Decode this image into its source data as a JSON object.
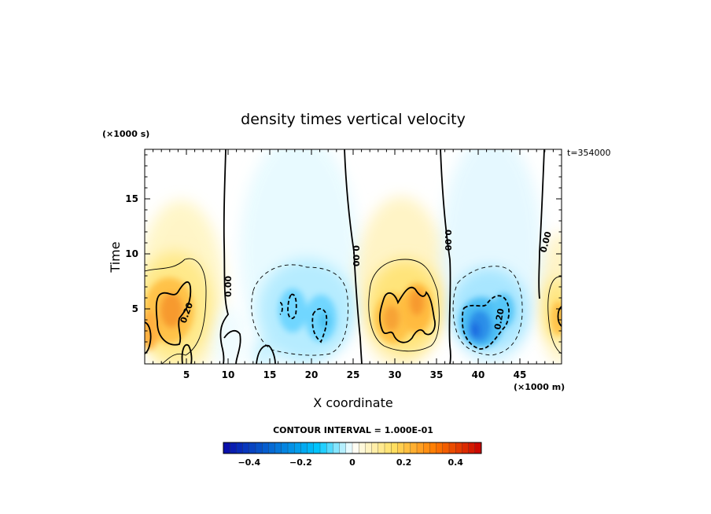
{
  "chart_data": {
    "type": "heatmap",
    "title": "density times vertical velocity",
    "xlabel": "X coordinate",
    "ylabel": "Time",
    "x_unit_label": "(×1000 m)",
    "y_unit_label": "(×1000 s)",
    "time_annotation": "t=354000",
    "xlim": [
      0,
      50
    ],
    "ylim": [
      0,
      19.5
    ],
    "x_ticks": [
      5,
      10,
      15,
      20,
      25,
      30,
      35,
      40,
      45
    ],
    "y_ticks": [
      5,
      10,
      15
    ],
    "contour_interval_label": "CONTOUR INTERVAL = 1.000E-01",
    "contour_labels": [
      "0.20",
      "0.00",
      "0.00",
      "0.00",
      "0.00",
      "0.20"
    ],
    "colorbar": {
      "min": -0.5,
      "max": 0.5,
      "tick_values": [
        -0.4,
        -0.2,
        0,
        0.2,
        0.4
      ],
      "tick_labels": [
        "−0.4",
        "−0.2",
        "0",
        "0.2",
        "0.4"
      ],
      "colors": [
        "#0a0aa8",
        "#00c8ff",
        "#ffffff",
        "#ffe060",
        "#ff7a00",
        "#c80000"
      ]
    },
    "features": [
      {
        "x": 2.5,
        "y": 4.5,
        "value": 0.35,
        "sign": "positive"
      },
      {
        "x": 17,
        "y": 4.5,
        "value": -0.22,
        "sign": "negative"
      },
      {
        "x": 21,
        "y": 4.0,
        "value": -0.22,
        "sign": "negative"
      },
      {
        "x": 30,
        "y": 4.0,
        "value": 0.3,
        "sign": "positive"
      },
      {
        "x": 33,
        "y": 5.0,
        "value": 0.32,
        "sign": "positive"
      },
      {
        "x": 40.5,
        "y": 3.0,
        "value": -0.38,
        "sign": "negative"
      },
      {
        "x": 49.5,
        "y": 4.5,
        "value": 0.22,
        "sign": "positive"
      }
    ]
  }
}
